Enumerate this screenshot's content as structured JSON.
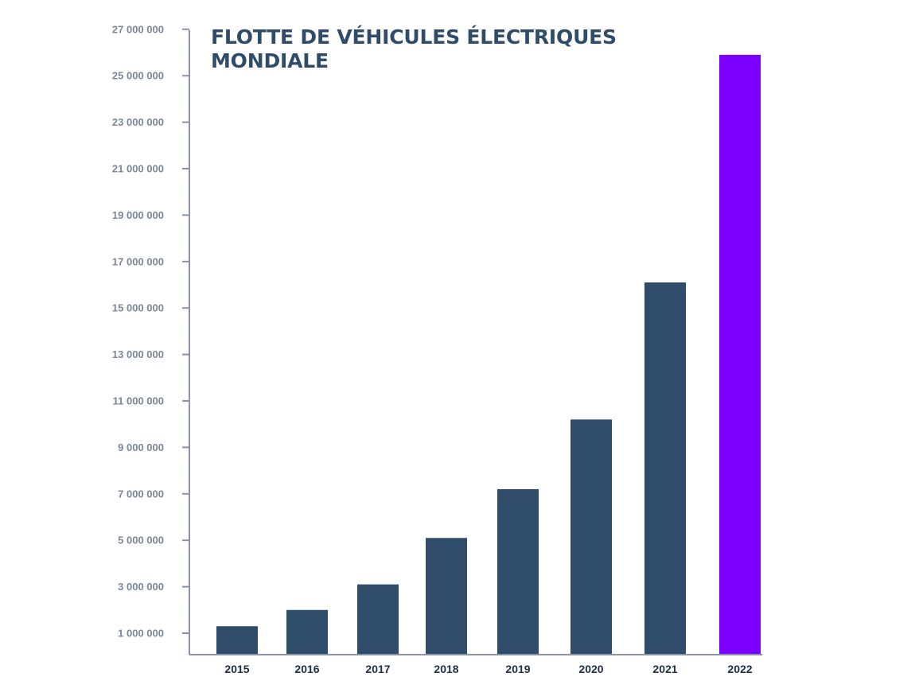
{
  "title_lines": [
    "FLOTTE DE VÉHICULES ÉLECTRIQUES",
    "MONDIALE"
  ],
  "colors": {
    "title": "#2f4c6b",
    "bar": "#2f4c6b",
    "highlight_bar": "#7b00ff",
    "axis": "#8a94a6",
    "tick_label": "#7b8796",
    "category_label": "#1f2f46"
  },
  "chart_data": {
    "type": "bar",
    "title": "FLOTTE DE VÉHICULES ÉLECTRIQUES MONDIALE",
    "xlabel": "",
    "ylabel": "",
    "categories": [
      "2015",
      "2016",
      "2017",
      "2018",
      "2019",
      "2020",
      "2021",
      "2022"
    ],
    "values": [
      1300000,
      2000000,
      3100000,
      5100000,
      7200000,
      10200000,
      16100000,
      25900000
    ],
    "highlight_index": 7,
    "ylim": [
      0,
      27000000
    ],
    "yticks": [
      1000000,
      3000000,
      5000000,
      7000000,
      9000000,
      11000000,
      13000000,
      15000000,
      17000000,
      19000000,
      21000000,
      23000000,
      25000000,
      27000000
    ],
    "ytick_labels": [
      "1 000 000",
      "3 000 000",
      "5 000 000",
      "7 000 000",
      "9 000 000",
      "11 000 000",
      "13 000 000",
      "15 000 000",
      "17 000 000",
      "19 000 000",
      "21 000 000",
      "23 000 000",
      "25 000 000",
      "27 000 000"
    ],
    "grid": false,
    "legend": "none"
  }
}
